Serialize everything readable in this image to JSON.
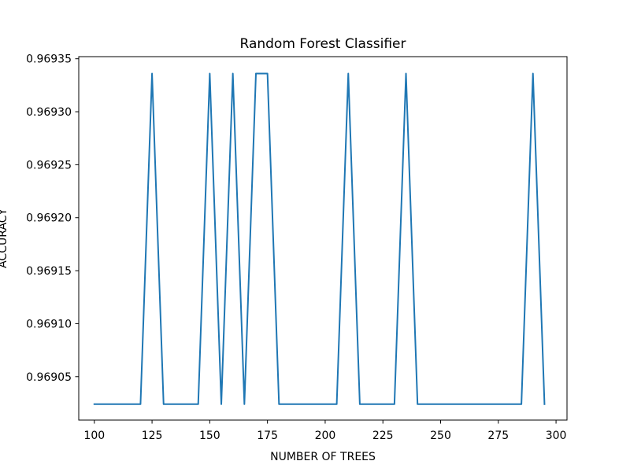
{
  "chart_data": {
    "type": "line",
    "title": "Random Forest Classifier",
    "xlabel": "NUMBER OF TREES",
    "ylabel": "ACCURACY",
    "xlim": [
      93.25,
      304.75
    ],
    "ylim": [
      0.969009,
      0.969352
    ],
    "x_ticks": [
      100,
      125,
      150,
      175,
      200,
      225,
      250,
      275,
      300
    ],
    "y_ticks": [
      0.96905,
      0.9691,
      0.96915,
      0.9692,
      0.96925,
      0.9693,
      0.96935
    ],
    "y_tick_labels": [
      "0.96905",
      "0.96910",
      "0.96915",
      "0.96920",
      "0.96925",
      "0.96930",
      "0.96935"
    ],
    "grid": false,
    "legend": "none",
    "series": [
      {
        "color": "#1f77b4",
        "x": [
          100,
          105,
          110,
          115,
          120,
          125,
          130,
          135,
          140,
          145,
          150,
          155,
          160,
          165,
          170,
          175,
          180,
          185,
          190,
          195,
          200,
          205,
          210,
          215,
          220,
          225,
          230,
          235,
          240,
          245,
          250,
          255,
          260,
          265,
          270,
          275,
          280,
          285,
          290,
          295
        ],
        "y": [
          0.969024,
          0.969024,
          0.969024,
          0.969024,
          0.969024,
          0.969336,
          0.969024,
          0.969024,
          0.969024,
          0.969024,
          0.969336,
          0.969024,
          0.969336,
          0.969024,
          0.969336,
          0.969336,
          0.969024,
          0.969024,
          0.969024,
          0.969024,
          0.969024,
          0.969024,
          0.969336,
          0.969024,
          0.969024,
          0.969024,
          0.969024,
          0.969336,
          0.969024,
          0.969024,
          0.969024,
          0.969024,
          0.969024,
          0.969024,
          0.969024,
          0.969024,
          0.969024,
          0.969024,
          0.969336,
          0.969024
        ]
      }
    ]
  }
}
